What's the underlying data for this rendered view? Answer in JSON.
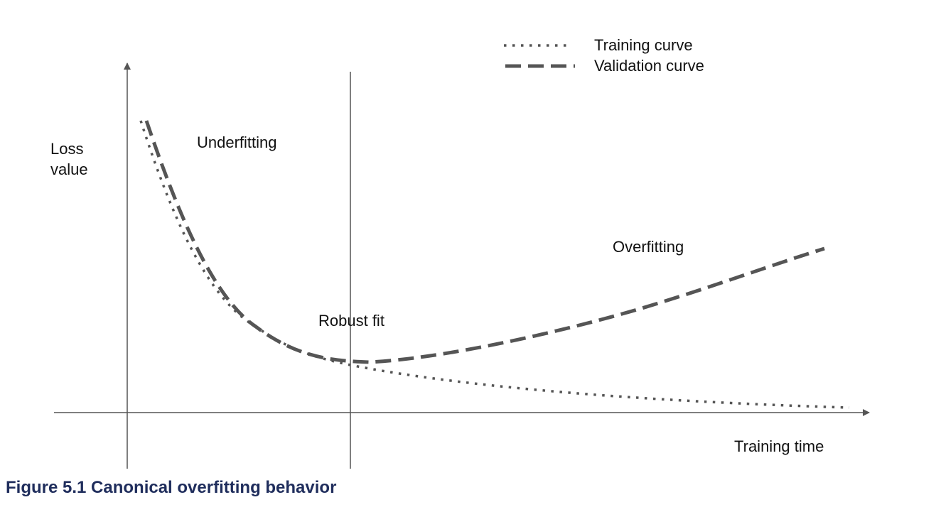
{
  "colors": {
    "axis": "#555555",
    "curve": "#555555",
    "caption": "#1f2d5c"
  },
  "legend": {
    "training": "Training curve",
    "validation": "Validation curve"
  },
  "axes": {
    "y_label_line1": "Loss",
    "y_label_line2": "value",
    "x_label": "Training time"
  },
  "regions": {
    "underfitting": "Underfitting",
    "robust_fit": "Robust fit",
    "overfitting": "Overfitting"
  },
  "caption": "Figure 5.1 Canonical overfitting behavior"
}
